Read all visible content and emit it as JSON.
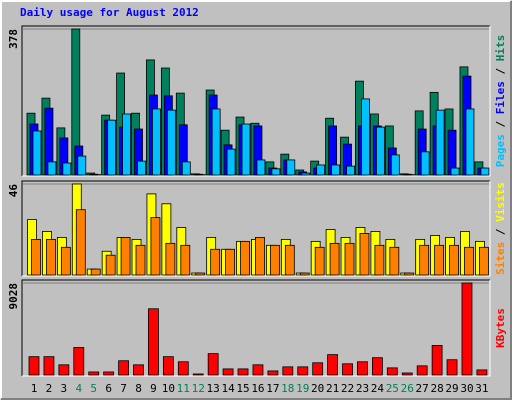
{
  "chart_data": {
    "type": "bar",
    "title": "Daily usage for August 2012",
    "title_color": "#0000ff",
    "legend_separator": " / ",
    "categories": [
      "1",
      "2",
      "3",
      "4",
      "5",
      "6",
      "7",
      "8",
      "9",
      "10",
      "11",
      "12",
      "13",
      "14",
      "15",
      "16",
      "17",
      "18",
      "19",
      "20",
      "21",
      "22",
      "23",
      "24",
      "25",
      "26",
      "27",
      "28",
      "29",
      "30",
      "31"
    ],
    "category_colors": [
      "#000000",
      "#000000",
      "#000000",
      "#00805c",
      "#00805c",
      "#000000",
      "#000000",
      "#000000",
      "#000000",
      "#000000",
      "#00805c",
      "#00805c",
      "#000000",
      "#000000",
      "#000000",
      "#000000",
      "#000000",
      "#00805c",
      "#00805c",
      "#000000",
      "#000000",
      "#000000",
      "#000000",
      "#000000",
      "#00805c",
      "#00805c",
      "#000000",
      "#000000",
      "#000000",
      "#000000",
      "#000000"
    ],
    "panels": [
      {
        "ylim": [
          0,
          378
        ],
        "yticks": [
          378
        ],
        "series": [
          {
            "name": "Pages",
            "color": "#00c0ff",
            "values": [
              114,
              34,
              31,
              49,
              1,
              142,
              158,
              36,
              171,
              168,
              34,
              1,
              171,
              67,
              132,
              39,
              16,
              39,
              5,
              26,
              26,
              23,
              197,
              124,
              52,
              1,
              60,
              168,
              18,
              171,
              18
            ]
          },
          {
            "name": "Files",
            "color": "#0000ff",
            "values": [
              132,
              173,
              96,
              75,
              2,
              142,
              124,
              119,
              207,
              205,
              130,
              2,
              207,
              78,
              130,
              127,
              18,
              39,
              8,
              18,
              127,
              80,
              127,
              127,
              70,
              2,
              119,
              127,
              116,
              256,
              18
            ]
          },
          {
            "name": "Hits",
            "color": "#00805c",
            "values": [
              160,
              199,
              122,
              378,
              5,
              155,
              264,
              160,
              298,
              277,
              212,
              3,
              220,
              116,
              150,
              134,
              34,
              54,
              13,
              36,
              147,
              98,
              243,
              158,
              127,
              3,
              166,
              214,
              171,
              280,
              34
            ]
          }
        ]
      },
      {
        "ylim": [
          0,
          46
        ],
        "yticks": [
          46
        ],
        "series": [
          {
            "name": "Sites",
            "color": "#ff8000",
            "values": [
              18,
              18,
              14,
              33,
              3,
              10,
              19,
              15,
              29,
              16,
              15,
              1,
              13,
              13,
              17,
              19,
              15,
              15,
              1,
              14,
              16,
              16,
              21,
              15,
              14,
              1,
              15,
              15,
              15,
              14,
              14
            ]
          },
          {
            "name": "Visits",
            "color": "#ffff00",
            "values": [
              28,
              22,
              19,
              46,
              3,
              12,
              19,
              18,
              41,
              36,
              24,
              1,
              19,
              13,
              17,
              18,
              15,
              18,
              1,
              17,
              23,
              19,
              24,
              22,
              18,
              1,
              18,
              20,
              19,
              22,
              17
            ]
          }
        ]
      },
      {
        "ylim": [
          0,
          9028
        ],
        "yticks": [
          9028
        ],
        "series": [
          {
            "name": "KBytes",
            "color": "#ff0000",
            "values": [
              1800,
              1800,
              1000,
              2700,
              300,
              300,
              1400,
              1000,
              6500,
              1800,
              1300,
              100,
              2100,
              600,
              600,
              1000,
              400,
              800,
              800,
              1200,
              2000,
              1100,
              1300,
              1700,
              700,
              200,
              900,
              2900,
              1500,
              9028,
              500
            ]
          }
        ]
      }
    ]
  }
}
